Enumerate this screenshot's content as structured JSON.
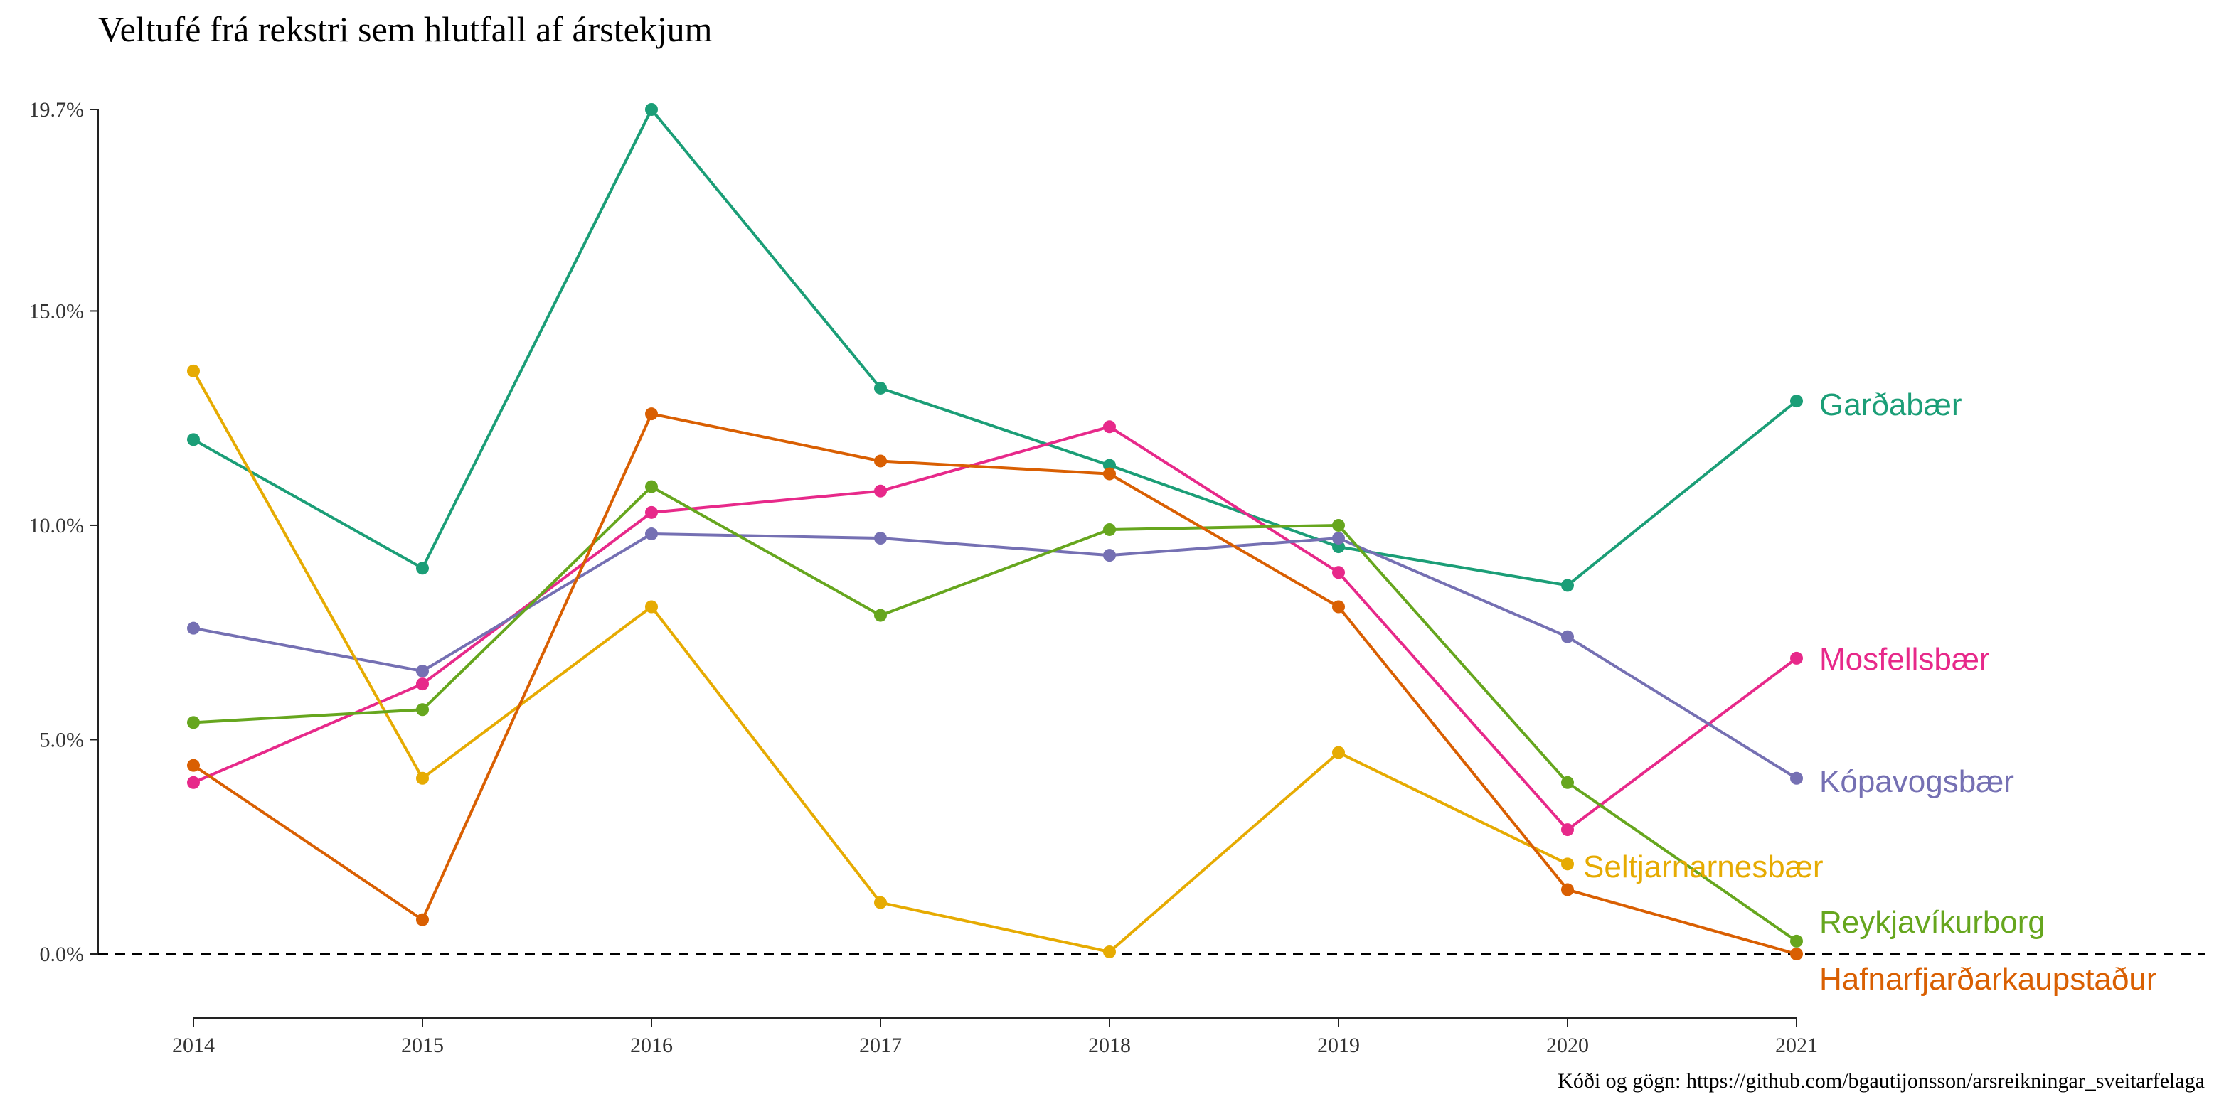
{
  "chart_data": {
    "type": "line",
    "title": "Veltufé frá rekstri sem hlutfall af árstekjum",
    "caption": "Kóði og gögn: https://github.com/bgautijonsson/arsreikningar_sveitarfelaga",
    "x": [
      2014,
      2015,
      2016,
      2017,
      2018,
      2019,
      2020,
      2021
    ],
    "x_tick_labels": [
      "2014",
      "2015",
      "2016",
      "2017",
      "2018",
      "2019",
      "2020",
      "2021"
    ],
    "y_ticks": [
      0,
      5,
      10,
      15,
      19.7
    ],
    "y_tick_labels": [
      "0.0%",
      "5.0%",
      "10.0%",
      "15.0%",
      "19.7%"
    ],
    "ylim": [
      0,
      19.7
    ],
    "reference_line": {
      "y": 0,
      "style": "dashed"
    },
    "grid": false,
    "legend": "direct labels at line ends",
    "series": [
      {
        "name": "Garðabær",
        "color": "#1b9e77",
        "values": [
          12.0,
          9.0,
          19.7,
          13.2,
          11.4,
          9.5,
          8.6,
          12.9
        ]
      },
      {
        "name": "Mosfellsbær",
        "color": "#e7298a",
        "values": [
          4.0,
          6.3,
          10.3,
          10.8,
          12.3,
          8.9,
          2.9,
          6.9
        ]
      },
      {
        "name": "Kópavogsbær",
        "color": "#7570b3",
        "values": [
          7.6,
          6.6,
          9.8,
          9.7,
          9.3,
          9.7,
          7.4,
          4.1
        ]
      },
      {
        "name": "Seltjarnarnesbær",
        "color": "#e6ab02",
        "values": [
          13.6,
          4.1,
          8.1,
          1.2,
          0.05,
          4.7,
          2.1,
          null
        ]
      },
      {
        "name": "Reykjavíkurborg",
        "color": "#66a61e",
        "values": [
          5.4,
          5.7,
          10.9,
          7.9,
          9.9,
          10.0,
          4.0,
          0.3
        ]
      },
      {
        "name": "Hafnarfjarðarkaupstaður",
        "color": "#d95f02",
        "values": [
          4.4,
          0.8,
          12.6,
          11.5,
          11.2,
          8.1,
          1.5,
          0.0
        ]
      }
    ]
  }
}
